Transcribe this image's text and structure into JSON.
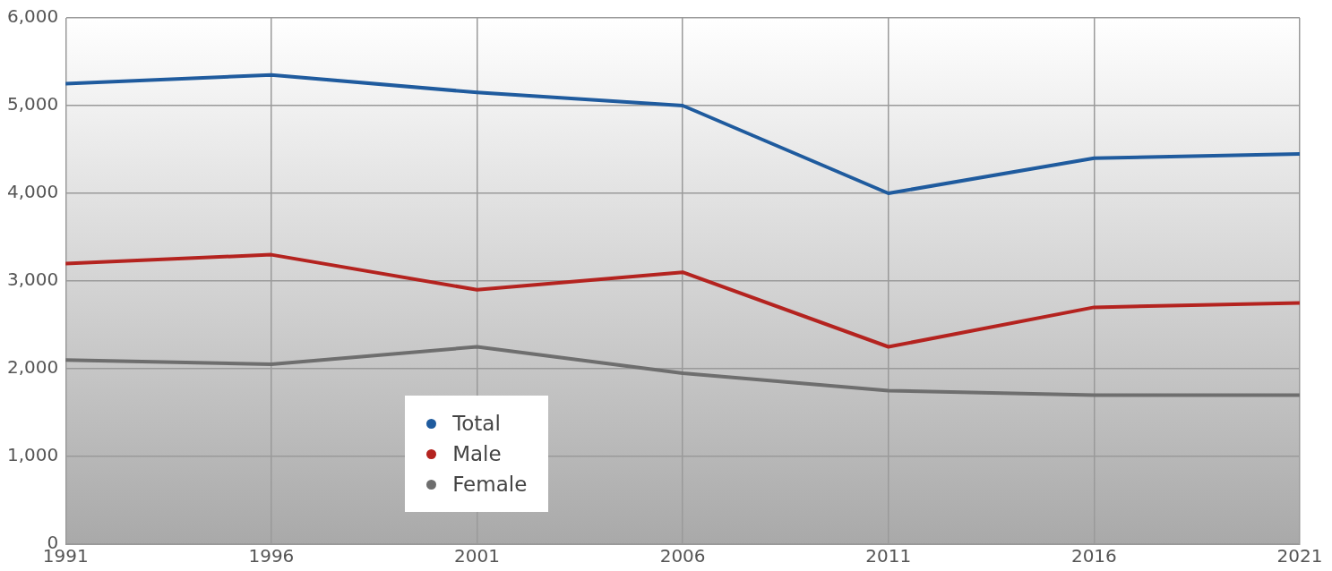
{
  "chart_data": {
    "type": "line",
    "x": [
      1991,
      1996,
      2001,
      2006,
      2011,
      2016,
      2021
    ],
    "series": [
      {
        "name": "Total",
        "color": "#1f5b9e",
        "values": [
          5250,
          5350,
          5150,
          5000,
          4000,
          4400,
          4450
        ]
      },
      {
        "name": "Male",
        "color": "#b4231f",
        "values": [
          3200,
          3300,
          2900,
          3100,
          2250,
          2700,
          2750
        ]
      },
      {
        "name": "Female",
        "color": "#6e6e6e",
        "values": [
          2100,
          2050,
          2250,
          1950,
          1750,
          1700,
          1700
        ]
      }
    ],
    "xlim": [
      1991,
      2021
    ],
    "xticks": [
      1991,
      1996,
      2001,
      2006,
      2011,
      2016,
      2021
    ],
    "ylim": [
      0,
      6000
    ],
    "yticks": [
      {
        "value": 0,
        "label": "0"
      },
      {
        "value": 1000,
        "label": "1,000"
      },
      {
        "value": 2000,
        "label": "2,000"
      },
      {
        "value": 3000,
        "label": "3,000"
      },
      {
        "value": 4000,
        "label": "4,000"
      },
      {
        "value": 5000,
        "label": "5,000"
      },
      {
        "value": 6000,
        "label": "6,000"
      }
    ],
    "grid": true,
    "legend": "bottom left",
    "marker": "none",
    "line_style": "solid"
  }
}
